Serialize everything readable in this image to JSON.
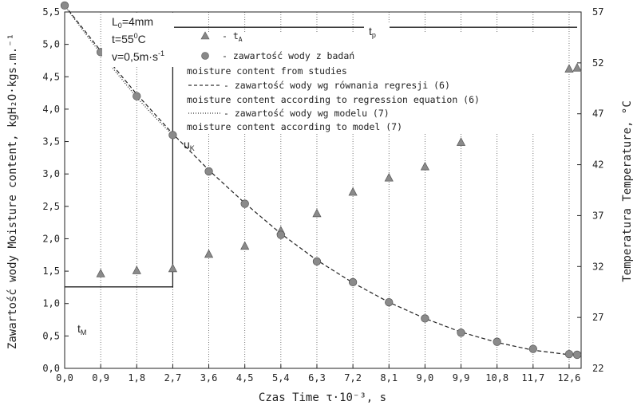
{
  "chart_data": {
    "type": "scatter",
    "xlabel": "Czas Time τ·10⁻³, s",
    "ylabel": "Zawartość wody Moisture content, kgH₂O·kgs.m.⁻¹",
    "y2label": "Temperatura Temperature, °C",
    "xlim": [
      0,
      12.9
    ],
    "ylim": [
      0,
      5.5
    ],
    "y2lim": [
      22,
      57
    ],
    "x_ticks": [
      "0,0",
      "0,9",
      "1,8",
      "2,7",
      "3,6",
      "4,5",
      "5,4",
      "6,3",
      "7,2",
      "8,1",
      "9,0",
      "9,9",
      "10,8",
      "11,7",
      "12,6"
    ],
    "x_tick_values": [
      0,
      0.9,
      1.8,
      2.7,
      3.6,
      4.5,
      5.4,
      6.3,
      7.2,
      8.1,
      9.0,
      9.9,
      10.8,
      11.7,
      12.6
    ],
    "y_ticks": [
      "0,0",
      "0,5",
      "1,0",
      "1,5",
      "2,0",
      "2,5",
      "3,0",
      "3,5",
      "4,0",
      "4,5",
      "5,0",
      "5,5"
    ],
    "y_tick_values": [
      0,
      0.5,
      1.0,
      1.5,
      2.0,
      2.5,
      3.0,
      3.5,
      4.0,
      4.5,
      5.0,
      5.5
    ],
    "y2_ticks": [
      "22",
      "27",
      "32",
      "37",
      "42",
      "47",
      "52",
      "57"
    ],
    "y2_tick_values": [
      22,
      27,
      32,
      37,
      42,
      47,
      52,
      57
    ],
    "grid": "vertical dotted",
    "conditions": {
      "L0": "L",
      "L0_sub": "0",
      "L0_value": "=4mm",
      "t": "t=55",
      "t_sup": "0",
      "t_unit": "C",
      "v": "v=0,5m·s",
      "v_sup": "-1"
    },
    "legend": [
      {
        "symbol": "triangle",
        "label": "- t",
        "label_sub": "A"
      },
      {
        "symbol": "circle",
        "label": "- zawartość wody z badań",
        "label2": "moisture content from studies"
      },
      {
        "symbol": "dashed",
        "label": "- zawartość wody wg równania regresji (6)",
        "label2": "moisture content according to regression equation (6)"
      },
      {
        "symbol": "dotted",
        "label": "- zawartość wody wg modelu (7)",
        "label2": "moisture content according to model (7)"
      }
    ],
    "annotations": {
      "uk": "u",
      "uk_sub": "K",
      "tp": "t",
      "tp_sub": "p",
      "tm": "t",
      "tm_sub": "M"
    },
    "series": [
      {
        "name": "t_A",
        "marker": "triangle",
        "axis": "right",
        "x": [
          0.9,
          1.8,
          2.7,
          3.6,
          4.5,
          5.4,
          6.3,
          7.2,
          8.1,
          9.0,
          9.9,
          10.8,
          11.7,
          12.6,
          12.8
        ],
        "y": [
          31.3,
          31.6,
          31.8,
          33.2,
          34.0,
          35.5,
          37.2,
          39.3,
          40.7,
          41.8,
          44.2,
          47.1,
          49.4,
          51.4,
          51.5
        ]
      },
      {
        "name": "moisture content from studies",
        "marker": "circle",
        "axis": "left",
        "x": [
          0.0,
          0.9,
          1.8,
          2.7,
          3.6,
          4.5,
          5.4,
          6.3,
          7.2,
          8.1,
          9.0,
          9.9,
          10.8,
          11.7,
          12.6,
          12.8
        ],
        "y": [
          5.6,
          4.88,
          4.2,
          3.6,
          3.04,
          2.54,
          2.06,
          1.65,
          1.33,
          1.02,
          0.77,
          0.55,
          0.41,
          0.3,
          0.22,
          0.21
        ]
      },
      {
        "name": "moisture content according to regression equation (6)",
        "style": "dashed",
        "axis": "left",
        "x": [
          0.0,
          0.9,
          1.8,
          2.7,
          3.6,
          4.5,
          5.4,
          6.3,
          7.2,
          8.1,
          9.0,
          9.9,
          10.8,
          11.7,
          12.6,
          12.8
        ],
        "y": [
          5.6,
          4.9,
          4.23,
          3.62,
          3.06,
          2.55,
          2.08,
          1.67,
          1.32,
          1.02,
          0.77,
          0.56,
          0.4,
          0.28,
          0.21,
          0.2
        ]
      },
      {
        "name": "moisture content according to model (7)",
        "style": "dotted",
        "axis": "left",
        "x": [
          0.0,
          0.45,
          0.9,
          1.35,
          1.8,
          2.25,
          2.7
        ],
        "y": [
          5.6,
          5.22,
          4.86,
          4.52,
          4.18,
          3.88,
          3.6
        ]
      },
      {
        "name": "temperature profile",
        "style": "solid-step",
        "axis": "right",
        "x": [
          0.0,
          2.7,
          2.7,
          12.8
        ],
        "y": [
          30.0,
          30.0,
          55.5,
          55.5
        ]
      }
    ]
  }
}
